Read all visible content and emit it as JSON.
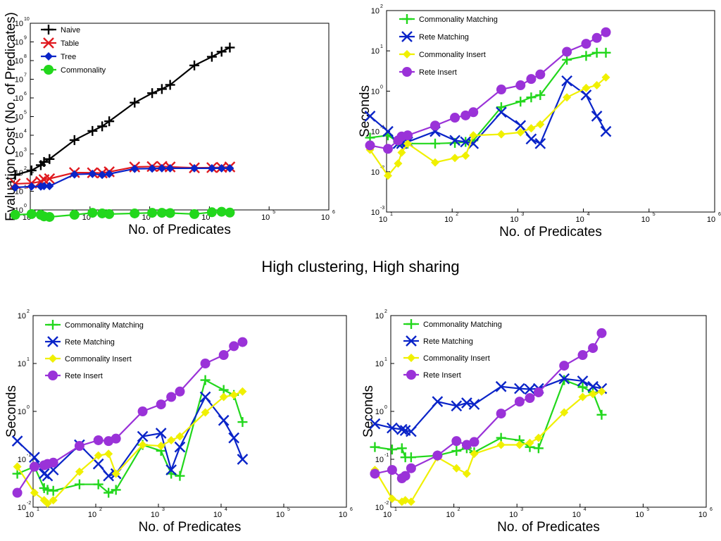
{
  "caption": "High clustering, High sharing",
  "chart_data": [
    {
      "type": "line",
      "xlabel": "No. of Predicates",
      "ylabel": "Evaluation Cost (No. of Predicates)",
      "xscale": "log",
      "yscale": "log",
      "xlim_exp": [
        1,
        6
      ],
      "ylim_exp": [
        0,
        10
      ],
      "legend_placement": "top-left",
      "series": [
        {
          "name": "Naive",
          "marker": "plus",
          "color": "#000000",
          "x": [
            5.6,
            10.5,
            15,
            17,
            21,
            55,
            110,
            160,
            210,
            560,
            1100,
            1600,
            2200,
            5600,
            11000,
            16000,
            22000
          ],
          "y": [
            75.0,
            130.0,
            250.0,
            370.0,
            530.0,
            5500.0,
            17000.0,
            30000.0,
            56000.0,
            560000.0,
            1800000.0,
            3000000.0,
            5000000.0,
            55000000.0,
            160000000.0,
            300000000.0,
            500000000.0
          ]
        },
        {
          "name": "Table",
          "marker": "x",
          "color": "#e0191f",
          "x": [
            5.6,
            10.5,
            15,
            17,
            21,
            55,
            110,
            160,
            210,
            560,
            1100,
            1600,
            2200,
            5600,
            11000,
            16000,
            22000
          ],
          "y": [
            25,
            27,
            33,
            42,
            47,
            100,
            98,
            95,
            110,
            200,
            210,
            215,
            200,
            180,
            185,
            190,
            200
          ]
        },
        {
          "name": "Tree",
          "marker": "diamond",
          "color": "#0a24c8",
          "x": [
            5.6,
            10.5,
            15,
            17,
            21,
            55,
            110,
            160,
            210,
            560,
            1100,
            1600,
            2200,
            5600,
            11000,
            16000,
            22000
          ],
          "y": [
            16,
            18,
            18,
            19,
            19,
            80,
            85,
            75,
            85,
            160,
            165,
            170,
            170,
            170,
            170,
            170,
            170
          ]
        },
        {
          "name": "Commonality",
          "marker": "circle",
          "color": "#22d71c",
          "x": [
            5.6,
            10.5,
            15,
            17,
            21,
            55,
            110,
            160,
            210,
            560,
            1100,
            1600,
            2200,
            5600,
            11000,
            16000,
            22000
          ],
          "y": [
            0.55,
            0.6,
            0.55,
            0.45,
            0.42,
            0.55,
            0.7,
            0.65,
            0.6,
            0.65,
            0.7,
            0.7,
            0.68,
            0.6,
            0.75,
            0.8,
            0.72
          ]
        }
      ]
    },
    {
      "type": "line",
      "xlabel": "No. of Predicates",
      "ylabel": "Seconds",
      "xscale": "log",
      "yscale": "log",
      "xlim_exp": [
        1,
        6
      ],
      "ylim_exp": [
        -3,
        2
      ],
      "legend_placement": "top-left",
      "series": [
        {
          "name": "Commonality Matching",
          "marker": "plus",
          "color": "#22d71c",
          "x": [
            5.6,
            10.5,
            15,
            17,
            21,
            55,
            110,
            160,
            210,
            560,
            1100,
            1600,
            2200,
            5600,
            11000,
            16000,
            22000
          ],
          "y": [
            0.07,
            0.08,
            0.055,
            0.052,
            0.05,
            0.05,
            0.052,
            0.055,
            0.06,
            0.4,
            0.55,
            0.7,
            0.8,
            6.0,
            7.5,
            9.0,
            9.0
          ]
        },
        {
          "name": "Rete Matching",
          "marker": "x",
          "color": "#0a24c8",
          "x": [
            5.6,
            10.5,
            15,
            17,
            21,
            55,
            110,
            160,
            210,
            560,
            1100,
            1600,
            2200,
            5600,
            11000,
            16000,
            22000
          ],
          "y": [
            0.24,
            0.1,
            0.05,
            0.05,
            0.055,
            0.1,
            0.06,
            0.055,
            0.05,
            0.3,
            0.14,
            0.065,
            0.05,
            1.8,
            0.8,
            0.24,
            0.1
          ]
        },
        {
          "name": "Commonality Insert",
          "marker": "diamond",
          "color": "#f0f000",
          "x": [
            5.6,
            10.5,
            15,
            17,
            21,
            55,
            110,
            160,
            210,
            560,
            1100,
            1600,
            2200,
            5600,
            11000,
            16000,
            22000
          ],
          "y": [
            0.035,
            0.008,
            0.016,
            0.03,
            0.05,
            0.017,
            0.022,
            0.025,
            0.08,
            0.085,
            0.095,
            0.12,
            0.15,
            0.7,
            1.2,
            1.4,
            2.2
          ]
        },
        {
          "name": "Rete Insert",
          "marker": "circle",
          "color": "#9a32d8",
          "x": [
            5.6,
            10.5,
            15,
            17,
            21,
            55,
            110,
            160,
            210,
            560,
            1100,
            1600,
            2200,
            5600,
            11000,
            16000,
            22000
          ],
          "y": [
            0.045,
            0.037,
            0.06,
            0.075,
            0.08,
            0.14,
            0.22,
            0.25,
            0.3,
            1.1,
            1.4,
            2.0,
            2.6,
            9.5,
            15,
            21,
            29
          ]
        }
      ]
    },
    {
      "type": "line",
      "xlabel": "No. of Predicates",
      "ylabel": "Seconds",
      "xscale": "log",
      "yscale": "log",
      "xlim_exp": [
        1,
        6
      ],
      "ylim_exp": [
        -2,
        2
      ],
      "legend_placement": "top-left",
      "series": [
        {
          "name": "Commonality Matching",
          "marker": "plus",
          "color": "#22d71c",
          "x": [
            5.6,
            10.5,
            15,
            17,
            21,
            55,
            110,
            160,
            210,
            560,
            1100,
            1600,
            2200,
            5600,
            11000,
            16000,
            22000
          ],
          "y": [
            0.05,
            0.07,
            0.025,
            0.023,
            0.022,
            0.03,
            0.03,
            0.02,
            0.023,
            0.2,
            0.15,
            0.05,
            0.045,
            4.5,
            2.8,
            2.2,
            0.6
          ]
        },
        {
          "name": "Rete Matching",
          "marker": "x",
          "color": "#0a24c8",
          "x": [
            5.6,
            10.5,
            15,
            17,
            21,
            55,
            110,
            160,
            210,
            560,
            1100,
            1600,
            2200,
            5600,
            11000,
            16000,
            22000
          ],
          "y": [
            0.24,
            0.11,
            0.05,
            0.045,
            0.06,
            0.2,
            0.08,
            0.045,
            0.05,
            0.3,
            0.35,
            0.06,
            0.18,
            2.0,
            0.65,
            0.28,
            0.1
          ]
        },
        {
          "name": "Commonality Insert",
          "marker": "diamond",
          "color": "#f0f000",
          "x": [
            5.6,
            10.5,
            15,
            17,
            21,
            55,
            110,
            160,
            210,
            560,
            1100,
            1600,
            2200,
            5600,
            11000,
            16000,
            22000
          ],
          "y": [
            0.07,
            0.02,
            0.014,
            0.012,
            0.014,
            0.055,
            0.12,
            0.13,
            0.05,
            0.2,
            0.19,
            0.25,
            0.3,
            0.95,
            2.0,
            2.2,
            2.6
          ]
        },
        {
          "name": "Rete Insert",
          "marker": "circle",
          "color": "#9a32d8",
          "x": [
            5.6,
            10.5,
            15,
            17,
            21,
            55,
            110,
            160,
            210,
            560,
            1100,
            1600,
            2200,
            5600,
            11000,
            16000,
            22000
          ],
          "y": [
            0.02,
            0.07,
            0.075,
            0.08,
            0.085,
            0.19,
            0.25,
            0.24,
            0.27,
            1.0,
            1.4,
            2.0,
            2.6,
            10,
            15,
            23,
            28
          ]
        }
      ]
    },
    {
      "type": "line",
      "xlabel": "No. of Predicates",
      "ylabel": "Seconds",
      "xscale": "log",
      "yscale": "log",
      "xlim_exp": [
        1,
        6
      ],
      "ylim_exp": [
        -2,
        2
      ],
      "legend_placement": "top-left",
      "series": [
        {
          "name": "Commonality Matching",
          "marker": "plus",
          "color": "#22d71c",
          "x": [
            5.6,
            10.5,
            15,
            17,
            21,
            55,
            110,
            160,
            210,
            560,
            1100,
            1600,
            2200,
            5600,
            11000,
            16000,
            22000
          ],
          "y": [
            0.18,
            0.16,
            0.17,
            0.11,
            0.11,
            0.12,
            0.15,
            0.17,
            0.14,
            0.28,
            0.25,
            0.18,
            0.17,
            4.5,
            3.2,
            2.5,
            0.85
          ]
        },
        {
          "name": "Rete Matching",
          "marker": "x",
          "color": "#0a24c8",
          "x": [
            5.6,
            10.5,
            15,
            17,
            21,
            55,
            110,
            160,
            210,
            560,
            1100,
            1600,
            2200,
            5600,
            11000,
            16000,
            22000
          ],
          "y": [
            0.55,
            0.45,
            0.42,
            0.4,
            0.38,
            1.6,
            1.3,
            1.5,
            1.4,
            3.3,
            3.0,
            2.9,
            3.0,
            4.8,
            4.3,
            3.3,
            3.0
          ]
        },
        {
          "name": "Commonality Insert",
          "marker": "diamond",
          "color": "#f0f000",
          "x": [
            5.6,
            10.5,
            15,
            17,
            21,
            55,
            110,
            160,
            210,
            560,
            1100,
            1600,
            2200,
            5600,
            11000,
            16000,
            22000
          ],
          "y": [
            0.06,
            0.015,
            0.013,
            0.014,
            0.013,
            0.11,
            0.065,
            0.05,
            0.13,
            0.2,
            0.2,
            0.22,
            0.28,
            0.95,
            2.0,
            2.3,
            2.6
          ]
        },
        {
          "name": "Rete Insert",
          "marker": "circle",
          "color": "#9a32d8",
          "x": [
            5.6,
            10.5,
            15,
            17,
            21,
            55,
            110,
            160,
            210,
            560,
            1100,
            1600,
            2200,
            5600,
            11000,
            16000,
            22000
          ],
          "y": [
            0.05,
            0.06,
            0.04,
            0.045,
            0.065,
            0.12,
            0.24,
            0.2,
            0.23,
            0.9,
            1.6,
            1.9,
            2.5,
            9.0,
            15,
            21,
            43
          ]
        }
      ]
    }
  ]
}
